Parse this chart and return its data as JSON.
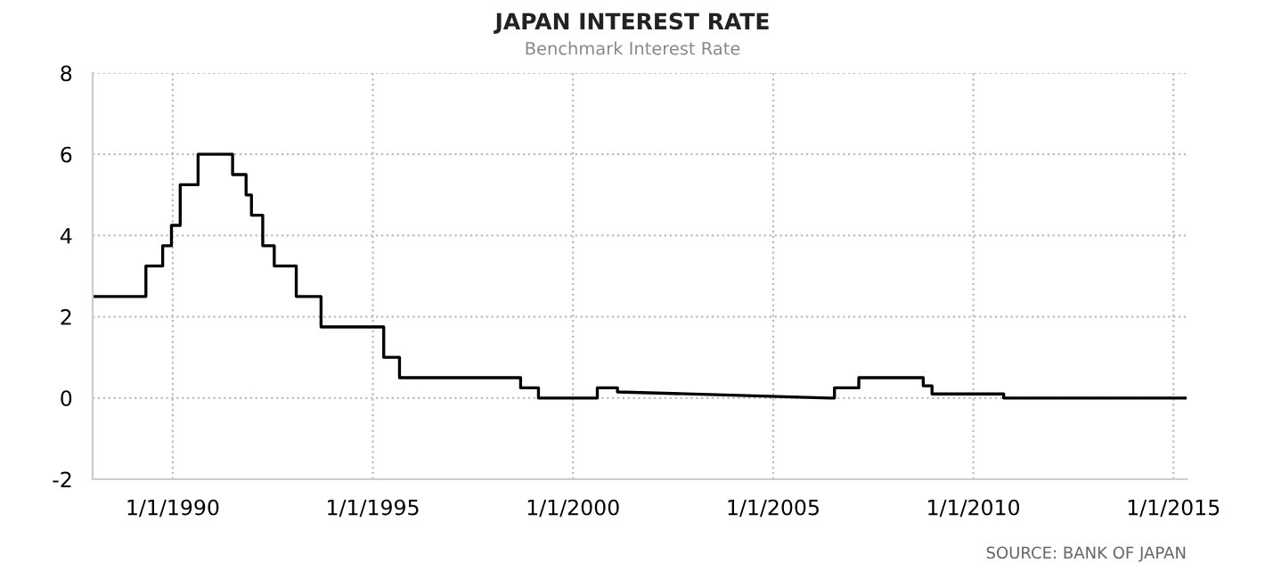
{
  "chart_data": {
    "type": "line",
    "title": "JAPAN INTEREST RATE",
    "subtitle": "Benchmark Interest Rate",
    "annotations": [
      "SOURCE: BANK OF JAPAN"
    ],
    "x": [
      "1988-01-01",
      "1989-05-01",
      "1989-05-01",
      "1989-10-01",
      "1989-10-01",
      "1989-12-20",
      "1989-12-20",
      "1990-03-10",
      "1990-03-10",
      "1990-08-20",
      "1990-08-20",
      "1991-07-01",
      "1991-07-01",
      "1991-11-01",
      "1991-11-01",
      "1991-12-20",
      "1991-12-20",
      "1992-04-01",
      "1992-04-01",
      "1992-07-15",
      "1992-07-15",
      "1993-02-01",
      "1993-02-01",
      "1993-09-15",
      "1993-09-15",
      "1995-04-10",
      "1995-04-10",
      "1995-09-01",
      "1995-09-01",
      "1998-09-10",
      "1998-09-10",
      "1999-02-20",
      "1999-02-20",
      "2000-08-10",
      "2000-08-10",
      "2001-02-10",
      "2001-02-10",
      "2006-06-01",
      "2006-07-14",
      "2006-07-14",
      "2007-02-21",
      "2007-02-21",
      "2008-10-01",
      "2008-10-01",
      "2008-12-20",
      "2008-12-20",
      "2010-10-05",
      "2010-10-05",
      "2015-04-30"
    ],
    "series": [
      {
        "color": "#000000",
        "values": [
          2.5,
          2.5,
          3.25,
          3.25,
          3.75,
          3.75,
          4.25,
          4.25,
          5.25,
          5.25,
          6.0,
          6.0,
          5.5,
          5.5,
          5.0,
          5.0,
          4.5,
          4.5,
          3.75,
          3.75,
          3.25,
          3.25,
          2.5,
          2.5,
          1.75,
          1.75,
          1.0,
          1.0,
          0.5,
          0.5,
          0.25,
          0.25,
          0.0,
          0.0,
          0.25,
          0.25,
          0.15,
          0.0,
          0.0,
          0.25,
          0.25,
          0.5,
          0.5,
          0.3,
          0.3,
          0.1,
          0.1,
          0.0,
          0.0
        ]
      }
    ],
    "xlim": [
      "1988-01-01",
      "2015-05-01"
    ],
    "xticks": [
      {
        "value": "1990-01-01",
        "label": "1/1/1990"
      },
      {
        "value": "1995-01-01",
        "label": "1/1/1995"
      },
      {
        "value": "2000-01-01",
        "label": "1/1/2000"
      },
      {
        "value": "2005-01-01",
        "label": "1/1/2005"
      },
      {
        "value": "2010-01-01",
        "label": "1/1/2010"
      },
      {
        "value": "2015-01-01",
        "label": "1/1/2015"
      }
    ],
    "ylim": [
      -2,
      8
    ],
    "yticks": [
      -2,
      0,
      2,
      4,
      6,
      8
    ],
    "grid": true,
    "line_style": "solid",
    "marker": "none"
  }
}
